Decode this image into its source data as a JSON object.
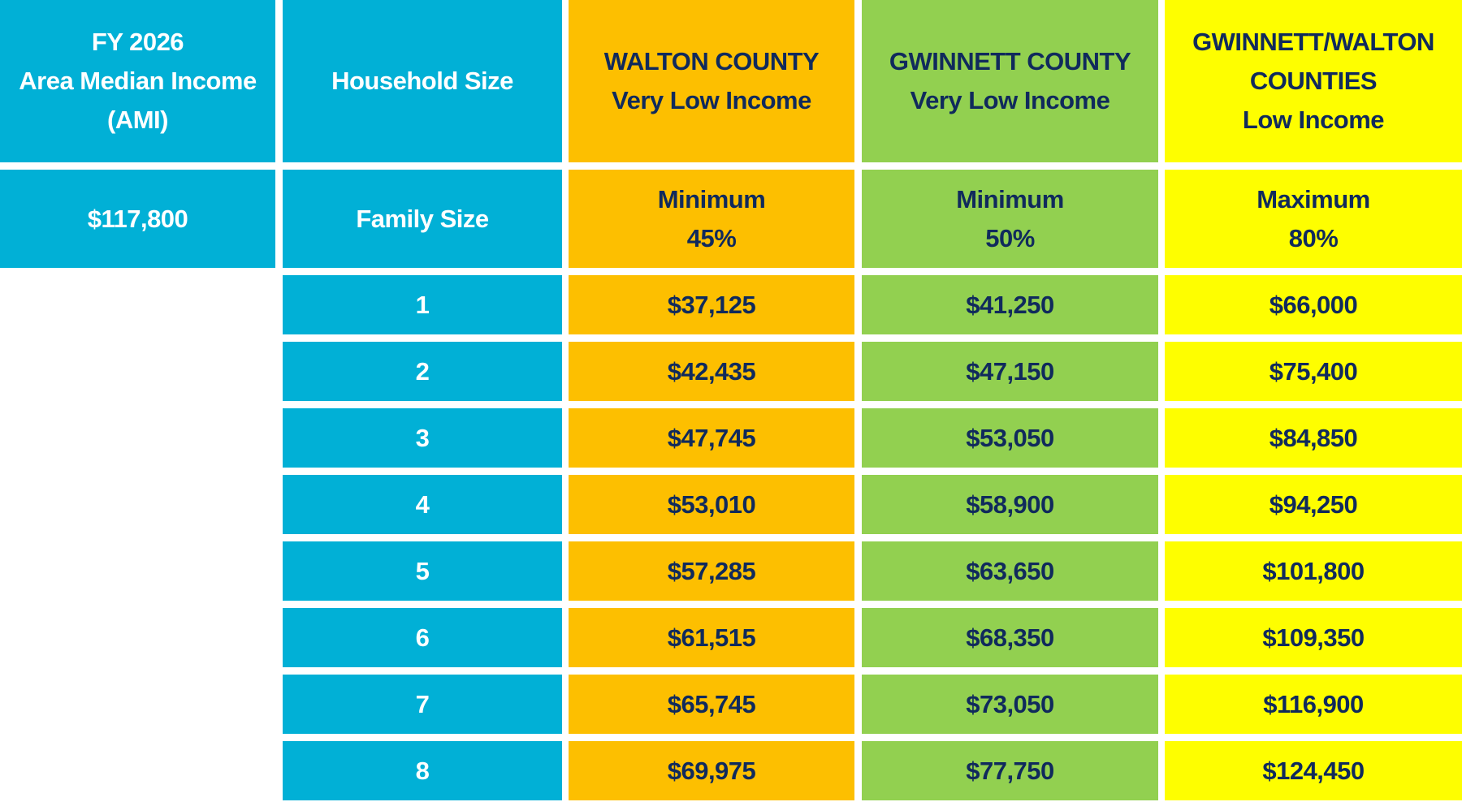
{
  "header": {
    "ami": [
      "FY 2026",
      "Area Median Income",
      "(AMI)"
    ],
    "household": [
      "Household Size"
    ],
    "walton": [
      "WALTON COUNTY",
      "Very Low Income"
    ],
    "gwinnett": [
      "GWINNETT COUNTY",
      "Very Low Income"
    ],
    "combined": [
      "GWINNETT/WALTON",
      "COUNTIES",
      "Low Income"
    ]
  },
  "subheader": {
    "ami_value": "$117,800",
    "family_size": "Family Size",
    "walton": [
      "Minimum",
      "45%"
    ],
    "gwinnett": [
      "Minimum",
      "50%"
    ],
    "combined": [
      "Maximum",
      "80%"
    ]
  },
  "columns": [
    "size",
    "walton",
    "gwinnett",
    "combined"
  ],
  "rows": [
    {
      "size": "1",
      "walton": "$37,125",
      "gwinnett": "$41,250",
      "combined": "$66,000"
    },
    {
      "size": "2",
      "walton": "$42,435",
      "gwinnett": "$47,150",
      "combined": "$75,400"
    },
    {
      "size": "3",
      "walton": "$47,745",
      "gwinnett": "$53,050",
      "combined": "$84,850"
    },
    {
      "size": "4",
      "walton": "$53,010",
      "gwinnett": "$58,900",
      "combined": "$94,250"
    },
    {
      "size": "5",
      "walton": "$57,285",
      "gwinnett": "$63,650",
      "combined": "$101,800"
    },
    {
      "size": "6",
      "walton": "$61,515",
      "gwinnett": "$68,350",
      "combined": "$109,350"
    },
    {
      "size": "7",
      "walton": "$65,745",
      "gwinnett": "$73,050",
      "combined": "$116,900"
    },
    {
      "size": "8",
      "walton": "$69,975",
      "gwinnett": "$77,750",
      "combined": "$124,450"
    }
  ],
  "colors": {
    "blue": "#01b0d6",
    "orange": "#fdbf00",
    "green": "#92d050",
    "yellow": "#fefe00",
    "navy_text": "#102a5c"
  }
}
